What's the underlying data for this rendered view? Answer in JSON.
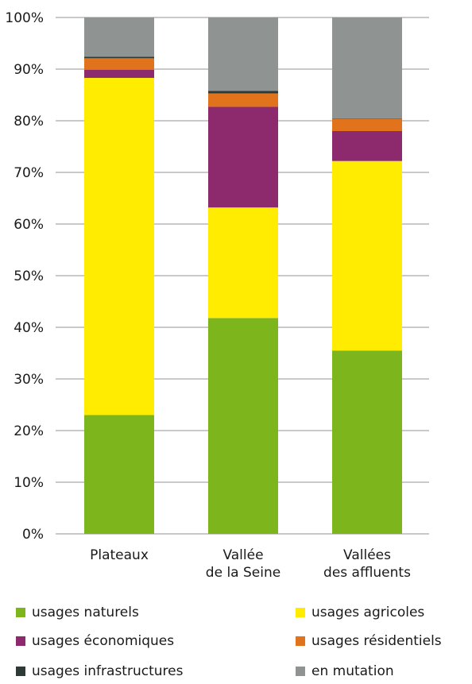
{
  "chart_data": {
    "type": "bar",
    "stacked": true,
    "y_unit": "%",
    "ylim": [
      0,
      100
    ],
    "y_ticks": [
      "0%",
      "10%",
      "20%",
      "30%",
      "40%",
      "50%",
      "60%",
      "70%",
      "80%",
      "90%",
      "100%"
    ],
    "grid": true,
    "legend_placement": "bottom",
    "categories": [
      [
        "Plateaux"
      ],
      [
        "Vallée",
        "de la Seine"
      ],
      [
        "Vallées",
        "des affluents"
      ]
    ],
    "series": [
      {
        "name": "usages naturels",
        "color": "#7db51d",
        "values": [
          23.0,
          41.8,
          35.5
        ]
      },
      {
        "name": "usages agricoles",
        "color": "#ffec00",
        "values": [
          65.3,
          21.4,
          36.7
        ]
      },
      {
        "name": "usages économiques",
        "color": "#8d2a6e",
        "values": [
          1.6,
          19.5,
          5.8
        ]
      },
      {
        "name": "usages résidentiels",
        "color": "#e2731d",
        "values": [
          2.2,
          2.6,
          2.4
        ]
      },
      {
        "name": "usages infrastructures",
        "color": "#2d3a36",
        "values": [
          0.3,
          0.5,
          0.1
        ]
      },
      {
        "name": "en mutation",
        "color": "#8f9392",
        "values": [
          7.6,
          14.2,
          19.5
        ]
      }
    ]
  }
}
